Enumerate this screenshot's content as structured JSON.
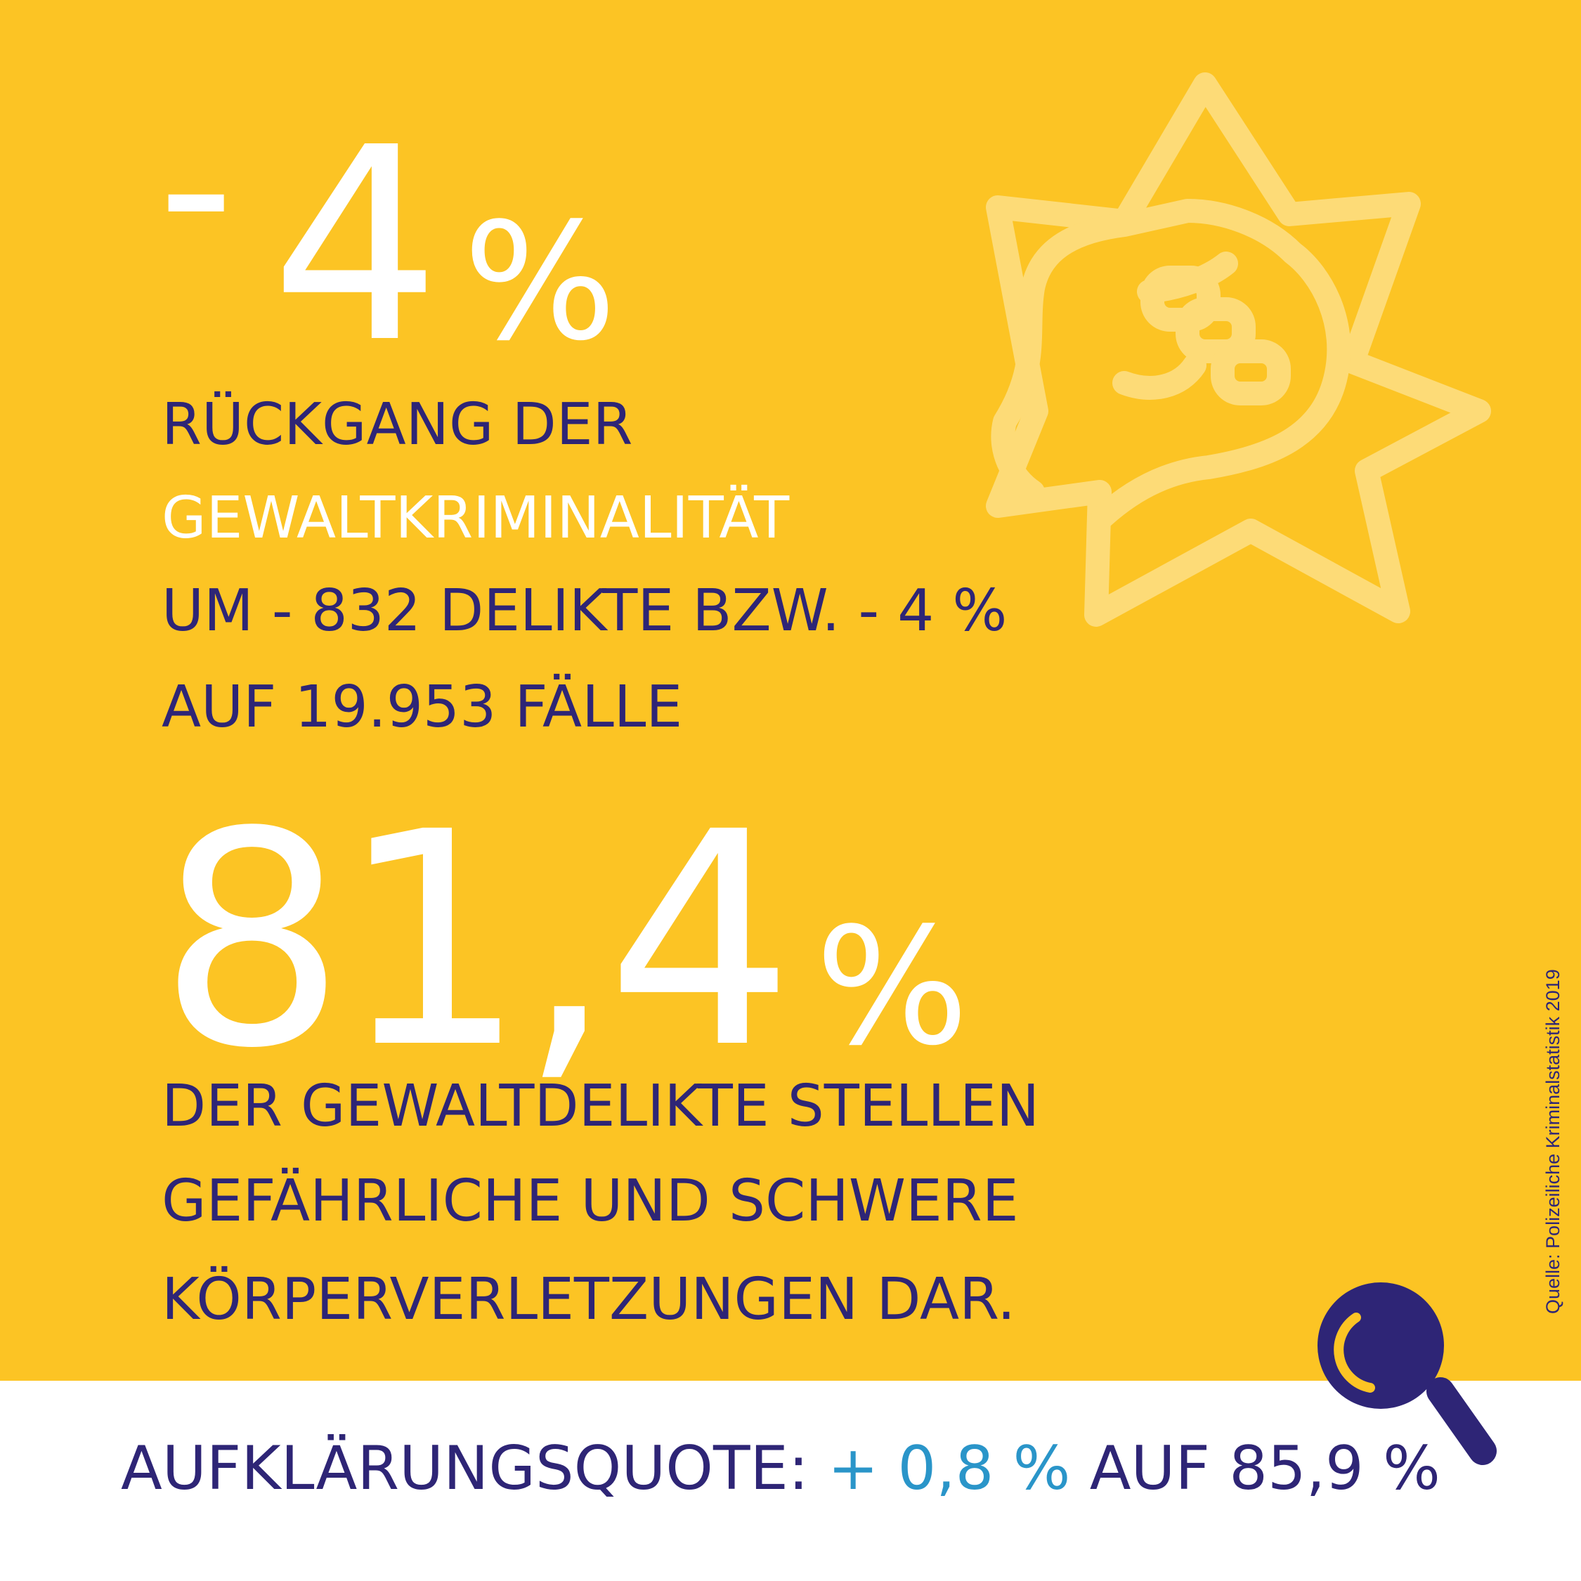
{
  "headline_change": {
    "sign": "-",
    "value": "4",
    "unit": "%"
  },
  "description_1": {
    "line1": "RÜCKGANG DER",
    "line2": "GEWALTKRIMINALITÄT",
    "line3": "UM - 832 DELIKTE BZW. - 4 %",
    "line4": "AUF 19.953 FÄLLE"
  },
  "headline_share": {
    "value": "81,4",
    "unit": "%"
  },
  "description_2": {
    "line1": "DER GEWALTDELIKTE STELLEN",
    "line2": "GEFÄHRLICHE UND SCHWERE",
    "line3": "KÖRPERVERLETZUNGEN DAR."
  },
  "footer": {
    "label": "AUFKLÄRUNGSQUOTE:",
    "change": "+ 0,8 %",
    "result": "AUF 85,9 %"
  },
  "source": "Quelle: Polizeiliche Kriminalstatistik 2019",
  "icons": {
    "burst": "fist-burst-icon",
    "search": "magnifier-icon"
  },
  "colors": {
    "background": "#fcc424",
    "navy": "#2e2576",
    "accent": "#2a95c9",
    "white": "#ffffff"
  }
}
